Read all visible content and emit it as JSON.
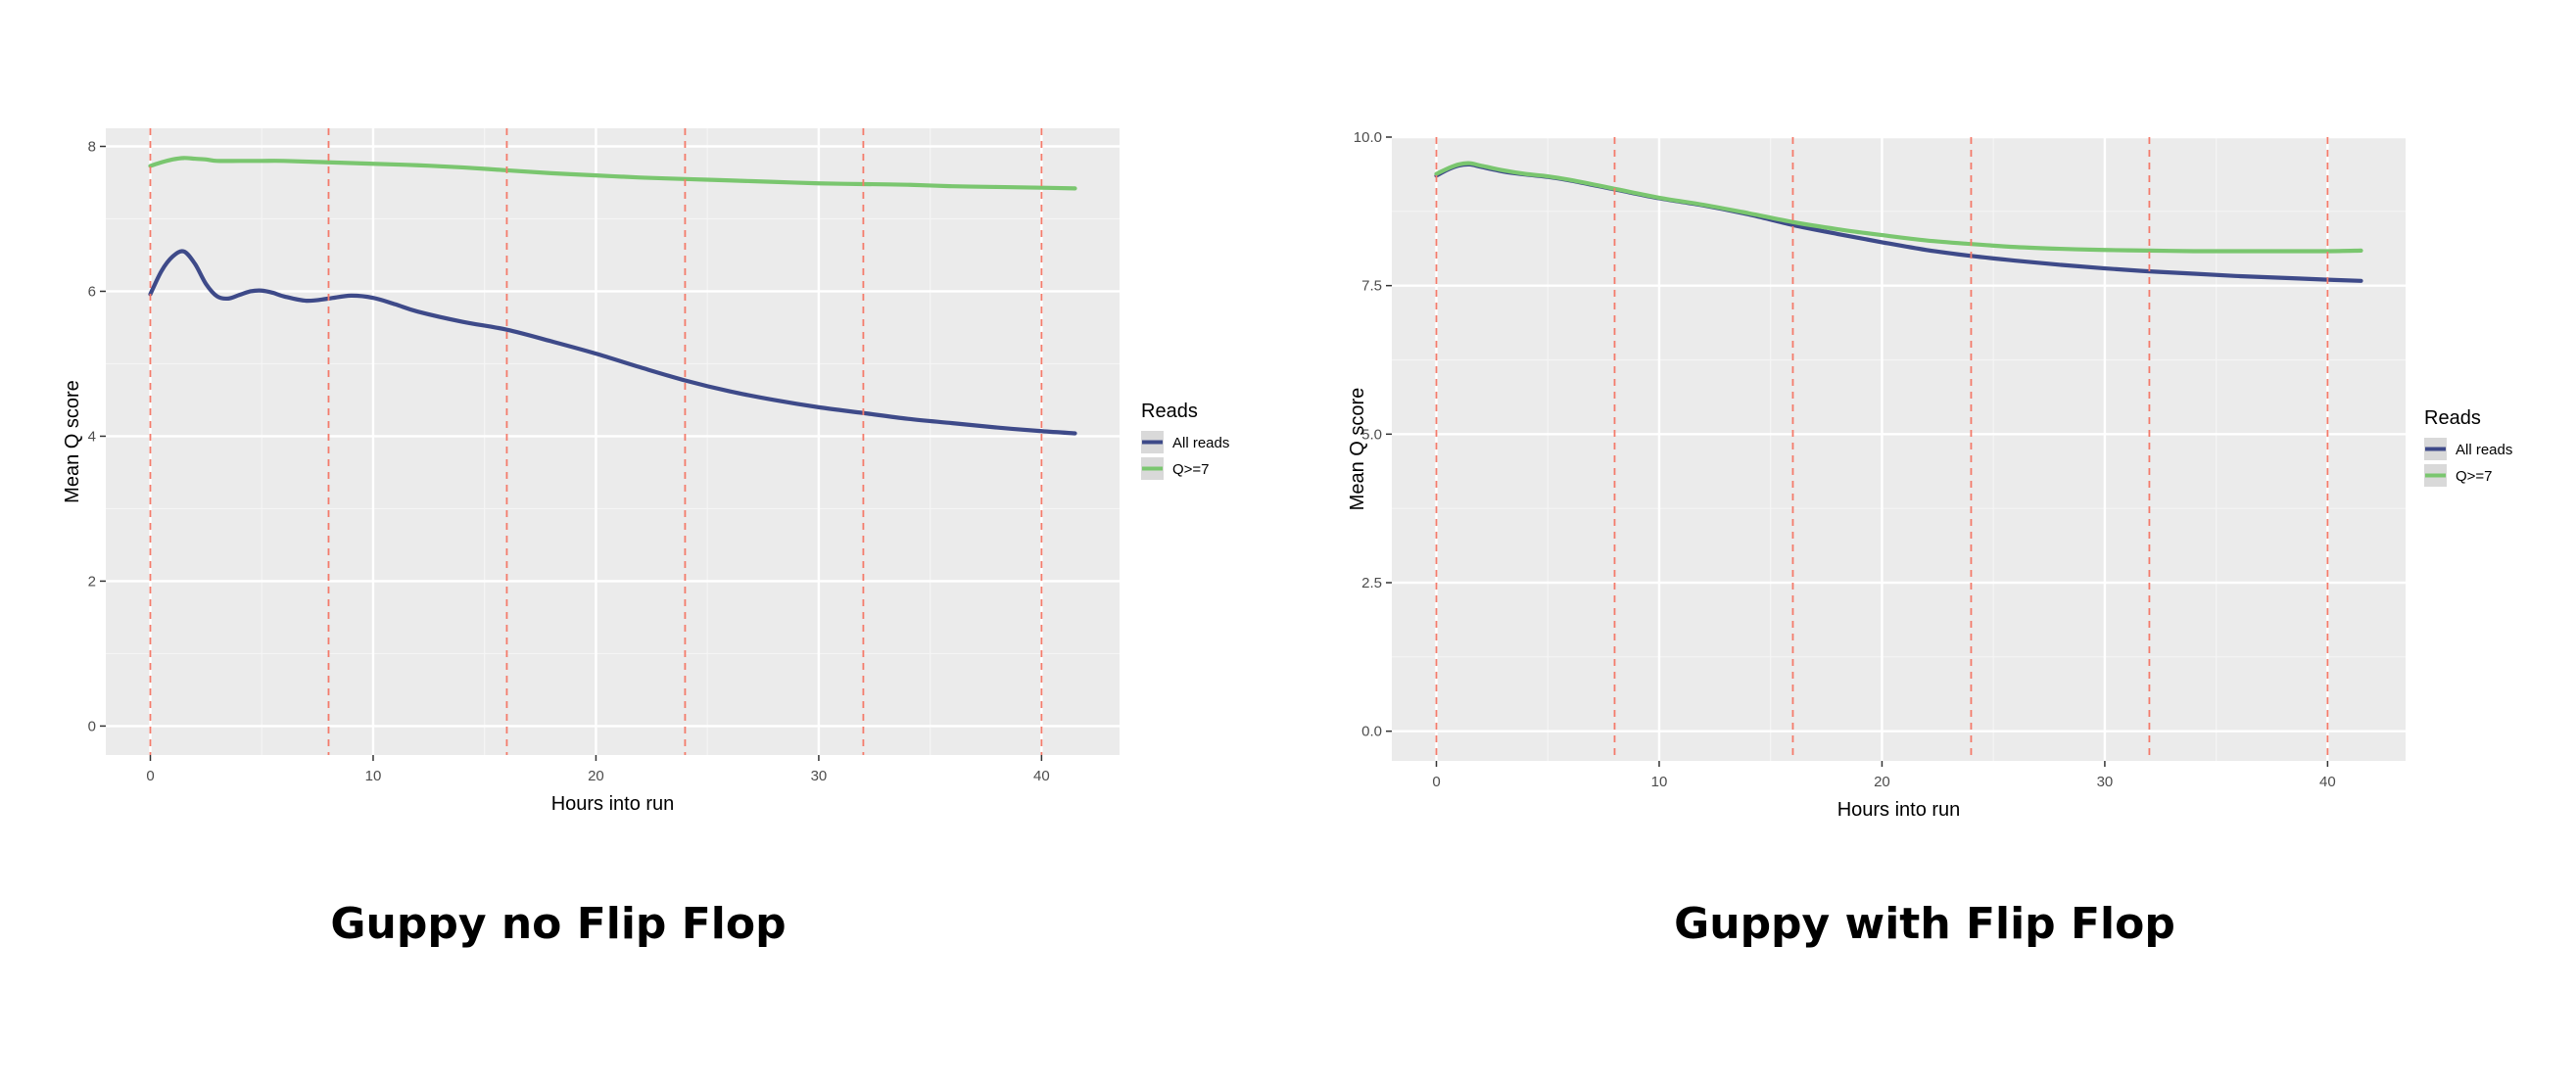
{
  "captions": {
    "left": "Guppy no Flip Flop",
    "right": "Guppy with Flip Flop"
  },
  "colors": {
    "panel_bg": "#EBEBEB",
    "grid_major": "#FFFFFF",
    "all_reads": "#3E4A89",
    "q7": "#7AC66F",
    "vline": "#F47B6B",
    "axis_text": "#4D4D4D"
  },
  "chart_data": [
    {
      "type": "line",
      "title": "",
      "xlabel": "Hours into run",
      "ylabel": "Mean Q score",
      "xlim": [
        -2,
        43.5
      ],
      "ylim": [
        -0.4,
        8.25
      ],
      "x_ticks": [
        0,
        10,
        20,
        30,
        40
      ],
      "x_tick_labels": [
        "0",
        "10",
        "20",
        "30",
        "40"
      ],
      "y_ticks": [
        0,
        2,
        4,
        6,
        8
      ],
      "y_tick_labels": [
        "0",
        "2",
        "4",
        "6",
        "8"
      ],
      "vlines": [
        0,
        8,
        16,
        24,
        32,
        40
      ],
      "grid": true,
      "legend": {
        "title": "Reads",
        "position": "right"
      },
      "series": [
        {
          "name": "All reads",
          "x": [
            0,
            0.5,
            1,
            1.5,
            2,
            2.5,
            3,
            3.5,
            4,
            4.5,
            5,
            5.5,
            6,
            7,
            8,
            9,
            10,
            11,
            12,
            14,
            16,
            18,
            20,
            22,
            24,
            26,
            28,
            30,
            32,
            34,
            36,
            38,
            40,
            41.5
          ],
          "y": [
            5.96,
            6.28,
            6.48,
            6.55,
            6.38,
            6.1,
            5.93,
            5.9,
            5.95,
            6.0,
            6.01,
            5.98,
            5.93,
            5.87,
            5.9,
            5.94,
            5.91,
            5.82,
            5.72,
            5.58,
            5.47,
            5.31,
            5.14,
            4.95,
            4.77,
            4.62,
            4.5,
            4.4,
            4.32,
            4.24,
            4.18,
            4.12,
            4.07,
            4.04
          ]
        },
        {
          "name": "Q>=7",
          "x": [
            0,
            0.5,
            1,
            1.5,
            2,
            2.5,
            3,
            4,
            5,
            6,
            8,
            10,
            12,
            14,
            16,
            18,
            20,
            22,
            24,
            26,
            28,
            30,
            32,
            34,
            36,
            38,
            40,
            41.5
          ],
          "y": [
            7.73,
            7.78,
            7.82,
            7.84,
            7.83,
            7.82,
            7.8,
            7.8,
            7.8,
            7.8,
            7.78,
            7.76,
            7.74,
            7.71,
            7.67,
            7.63,
            7.6,
            7.57,
            7.55,
            7.53,
            7.51,
            7.49,
            7.48,
            7.47,
            7.45,
            7.44,
            7.43,
            7.42
          ]
        }
      ]
    },
    {
      "type": "line",
      "title": "",
      "xlabel": "Hours into run",
      "ylabel": "Mean Q score",
      "xlim": [
        -2,
        43.5
      ],
      "ylim": [
        -0.5,
        10.0
      ],
      "x_ticks": [
        0,
        10,
        20,
        30,
        40
      ],
      "x_tick_labels": [
        "0",
        "10",
        "20",
        "30",
        "40"
      ],
      "y_ticks": [
        0,
        2.5,
        5,
        7.5,
        10
      ],
      "y_tick_labels": [
        "0.0",
        "2.5",
        "5.0",
        "7.5",
        "10.0"
      ],
      "vlines": [
        0,
        8,
        16,
        24,
        32,
        40
      ],
      "grid": true,
      "legend": {
        "title": "Reads",
        "position": "right"
      },
      "series": [
        {
          "name": "All reads",
          "x": [
            0,
            0.5,
            1,
            1.5,
            2,
            3,
            4,
            5,
            6,
            8,
            10,
            12,
            14,
            16,
            18,
            20,
            22,
            24,
            26,
            28,
            30,
            32,
            34,
            36,
            38,
            40,
            41.5
          ],
          "y": [
            9.35,
            9.45,
            9.52,
            9.54,
            9.5,
            9.42,
            9.37,
            9.33,
            9.27,
            9.12,
            8.97,
            8.85,
            8.7,
            8.52,
            8.37,
            8.23,
            8.1,
            8.0,
            7.92,
            7.85,
            7.79,
            7.74,
            7.7,
            7.66,
            7.63,
            7.6,
            7.58
          ]
        },
        {
          "name": "Q>=7",
          "x": [
            0,
            0.5,
            1,
            1.5,
            2,
            3,
            4,
            5,
            6,
            8,
            10,
            12,
            14,
            16,
            18,
            20,
            22,
            24,
            26,
            28,
            30,
            32,
            34,
            36,
            38,
            40,
            41.5
          ],
          "y": [
            9.38,
            9.47,
            9.54,
            9.56,
            9.52,
            9.44,
            9.38,
            9.34,
            9.28,
            9.13,
            8.98,
            8.86,
            8.72,
            8.57,
            8.45,
            8.35,
            8.26,
            8.2,
            8.15,
            8.12,
            8.1,
            8.09,
            8.08,
            8.08,
            8.08,
            8.08,
            8.09
          ]
        }
      ]
    }
  ]
}
